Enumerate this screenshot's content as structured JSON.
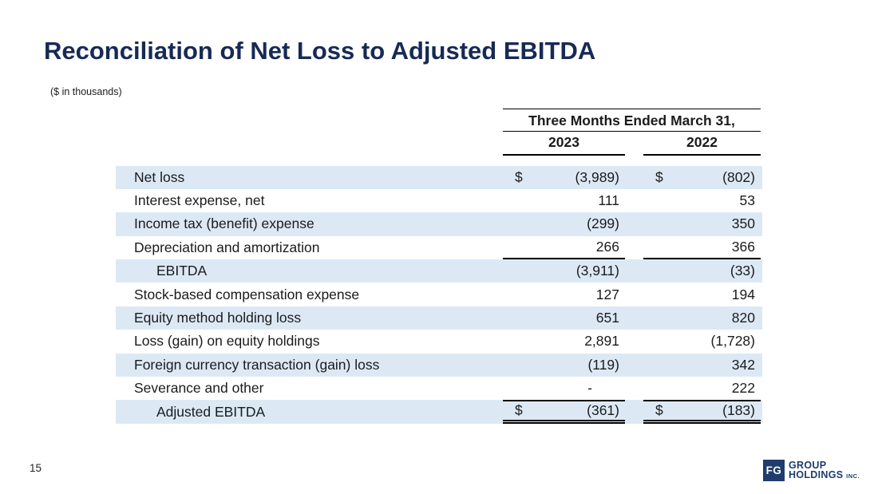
{
  "slide": {
    "title": "Reconciliation of Net Loss to Adjusted EBITDA",
    "units_note": "($ in thousands)",
    "page_number": "15"
  },
  "table": {
    "period_header": "Three Months Ended March 31,",
    "columns": {
      "c1": "2023",
      "c2": "2022"
    },
    "rows": [
      {
        "label": "Net loss",
        "currency": "$",
        "y2023": "(3,989)",
        "y2022": "(802)"
      },
      {
        "label": "Interest expense, net",
        "currency": "",
        "y2023": "111",
        "y2022": "53"
      },
      {
        "label": "Income tax (benefit) expense",
        "currency": "",
        "y2023": "(299)",
        "y2022": "350"
      },
      {
        "label": "Depreciation and amortization",
        "currency": "",
        "y2023": "266",
        "y2022": "366"
      },
      {
        "label": "EBITDA",
        "currency": "",
        "y2023": "(3,911)",
        "y2022": "(33)"
      },
      {
        "label": "Stock-based compensation expense",
        "currency": "",
        "y2023": "127",
        "y2022": "194"
      },
      {
        "label": "Equity method holding loss",
        "currency": "",
        "y2023": "651",
        "y2022": "820"
      },
      {
        "label": "Loss (gain) on equity holdings",
        "currency": "",
        "y2023": "2,891",
        "y2022": "(1,728)"
      },
      {
        "label": "Foreign currency transaction (gain) loss",
        "currency": "",
        "y2023": "(119)",
        "y2022": "342"
      },
      {
        "label": "Severance and other",
        "currency": "",
        "y2023": "-",
        "y2022": "222"
      },
      {
        "label": "Adjusted EBITDA",
        "currency": "$",
        "y2023": "(361)",
        "y2022": "(183)"
      }
    ]
  },
  "logo": {
    "mark": "FG",
    "name_line1": "GROUP",
    "name_line2": "HOLDINGS",
    "suffix": "INC."
  },
  "colors": {
    "title_navy": "#172a54",
    "row_shade": "#dce9f5",
    "logo_navy": "#1f3c6d"
  }
}
